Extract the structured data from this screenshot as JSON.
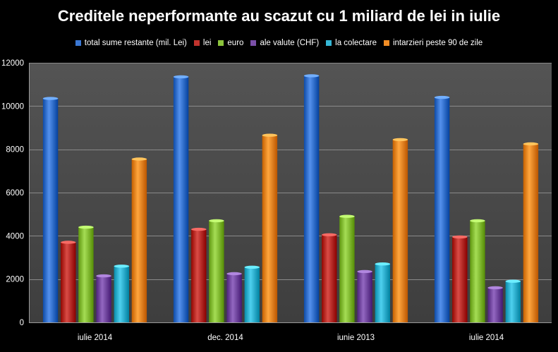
{
  "chart_data": {
    "type": "bar",
    "title": "Creditele neperformante au scazut cu 1 miliard de lei in iulie",
    "xlabel": "",
    "ylabel": "",
    "categories": [
      "iulie 2014",
      "dec. 2014",
      "iunie 2013",
      "iulie 2014"
    ],
    "ylim": [
      0,
      12000
    ],
    "yticks": [
      0,
      2000,
      4000,
      6000,
      8000,
      10000,
      12000
    ],
    "ytick_labels": [
      "0",
      "2000",
      "4000",
      "6000",
      "8000",
      "10000",
      "12000"
    ],
    "grid": true,
    "legend_position": "top",
    "series": [
      {
        "name": "total sume restante (mil. Lei)",
        "color": "#3b78d4",
        "values": [
          10350,
          11350,
          11400,
          10400
        ]
      },
      {
        "name": "lei",
        "color": "#c0332d",
        "values": [
          3700,
          4300,
          4050,
          3950
        ]
      },
      {
        "name": "euro",
        "color": "#8cc43c",
        "values": [
          4400,
          4700,
          4900,
          4700
        ]
      },
      {
        "name": "ale valute  (CHF)",
        "color": "#7a4fa8",
        "values": [
          2150,
          2250,
          2350,
          1600
        ]
      },
      {
        "name": "la colectare",
        "color": "#35b7d6",
        "values": [
          2600,
          2550,
          2700,
          1900
        ]
      },
      {
        "name": "intarzieri peste 90 de zile",
        "color": "#f28d25",
        "values": [
          7550,
          8650,
          8450,
          8250
        ]
      }
    ]
  }
}
